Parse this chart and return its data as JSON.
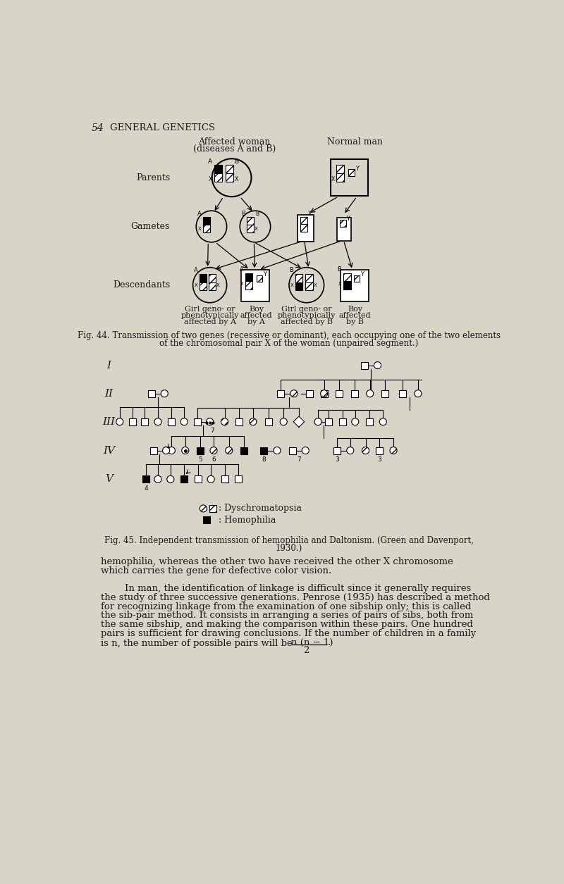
{
  "bg_color": "#d8d4c8",
  "text_color": "#1a1a1a",
  "page_num": "54",
  "header": "GENERAL GENETICS",
  "fig44_caption_1": "Fig. 44. Transmission of two genes (recessive or dominant), each occupying one of the two elements",
  "fig44_caption_2": "of the chromosomal pair X of the woman (unpaired segment.)",
  "fig45_caption_1": "Fig. 45. Independent transmission of hemophilia and Daltonism. (Green and Davenport,",
  "fig45_caption_2": "1930.)",
  "para1_1": "hemophilia, whereas the other two have received the other X chromosome",
  "para1_2": "which carries the gene for defective color vision.",
  "para2_1": "        In man, the identification of linkage is difficult since it generally requires",
  "para2_2": "the study of three successive generations. Penrose (1935) has described a method",
  "para2_3": "for recognizing linkage from the examination of one sibship only; this is called",
  "para2_4": "the sib-pair method. It consists in arranging a series of pairs of sibs, both from",
  "para2_5": "the same sibship, and making the comparison within these pairs. One hundred",
  "para2_6": "pairs is sufficient for drawing conclusions. If the number of children in a family",
  "para3": "is n, the number of possible pairs will be",
  "fraction_num": "n (n − 1)",
  "fraction_den": "2",
  "legend_dyschrom": ": Dyschromatopsia",
  "legend_hemo": ": Hemophilia"
}
